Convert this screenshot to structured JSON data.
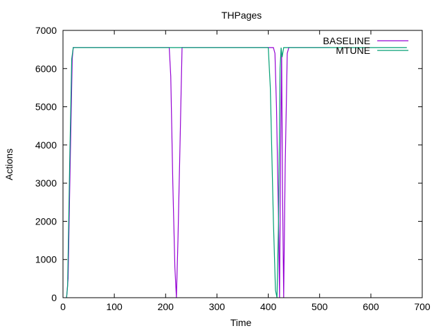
{
  "chart_data": {
    "type": "line",
    "title": "THPages",
    "xlabel": "Time",
    "ylabel": "Actions",
    "xlim": [
      0,
      700
    ],
    "ylim": [
      0,
      7000
    ],
    "x_ticks": [
      0,
      100,
      200,
      300,
      400,
      500,
      600,
      700
    ],
    "y_ticks": [
      0,
      1000,
      2000,
      3000,
      4000,
      5000,
      6000,
      7000
    ],
    "grid": false,
    "legend_position": "top-right",
    "series": [
      {
        "name": "BASELINE",
        "color": "#9400d3",
        "points": [
          [
            7,
            0
          ],
          [
            10,
            500
          ],
          [
            14,
            3500
          ],
          [
            18,
            6250
          ],
          [
            20,
            6550
          ],
          [
            207,
            6550
          ],
          [
            210,
            5800
          ],
          [
            214,
            3000
          ],
          [
            218,
            800
          ],
          [
            221,
            0
          ],
          [
            224,
            1500
          ],
          [
            228,
            4000
          ],
          [
            232,
            6550
          ],
          [
            410,
            6550
          ],
          [
            413,
            6400
          ],
          [
            416,
            5000
          ],
          [
            420,
            2000
          ],
          [
            422,
            0
          ],
          [
            424,
            3700
          ],
          [
            426,
            6400
          ],
          [
            428,
            2500
          ],
          [
            430,
            0
          ],
          [
            433,
            3500
          ],
          [
            437,
            6400
          ],
          [
            440,
            6550
          ],
          [
            455,
            6550
          ],
          [
            520,
            6550
          ]
        ]
      },
      {
        "name": "MTUNE",
        "color": "#009e73",
        "points": [
          [
            7,
            0
          ],
          [
            9,
            300
          ],
          [
            13,
            3500
          ],
          [
            17,
            6250
          ],
          [
            20,
            6550
          ],
          [
            400,
            6550
          ],
          [
            404,
            5500
          ],
          [
            410,
            2000
          ],
          [
            414,
            200
          ],
          [
            417,
            0
          ],
          [
            420,
            2000
          ],
          [
            423,
            6000
          ],
          [
            425,
            6550
          ],
          [
            427,
            6300
          ],
          [
            430,
            6550
          ],
          [
            670,
            6550
          ]
        ]
      }
    ]
  }
}
